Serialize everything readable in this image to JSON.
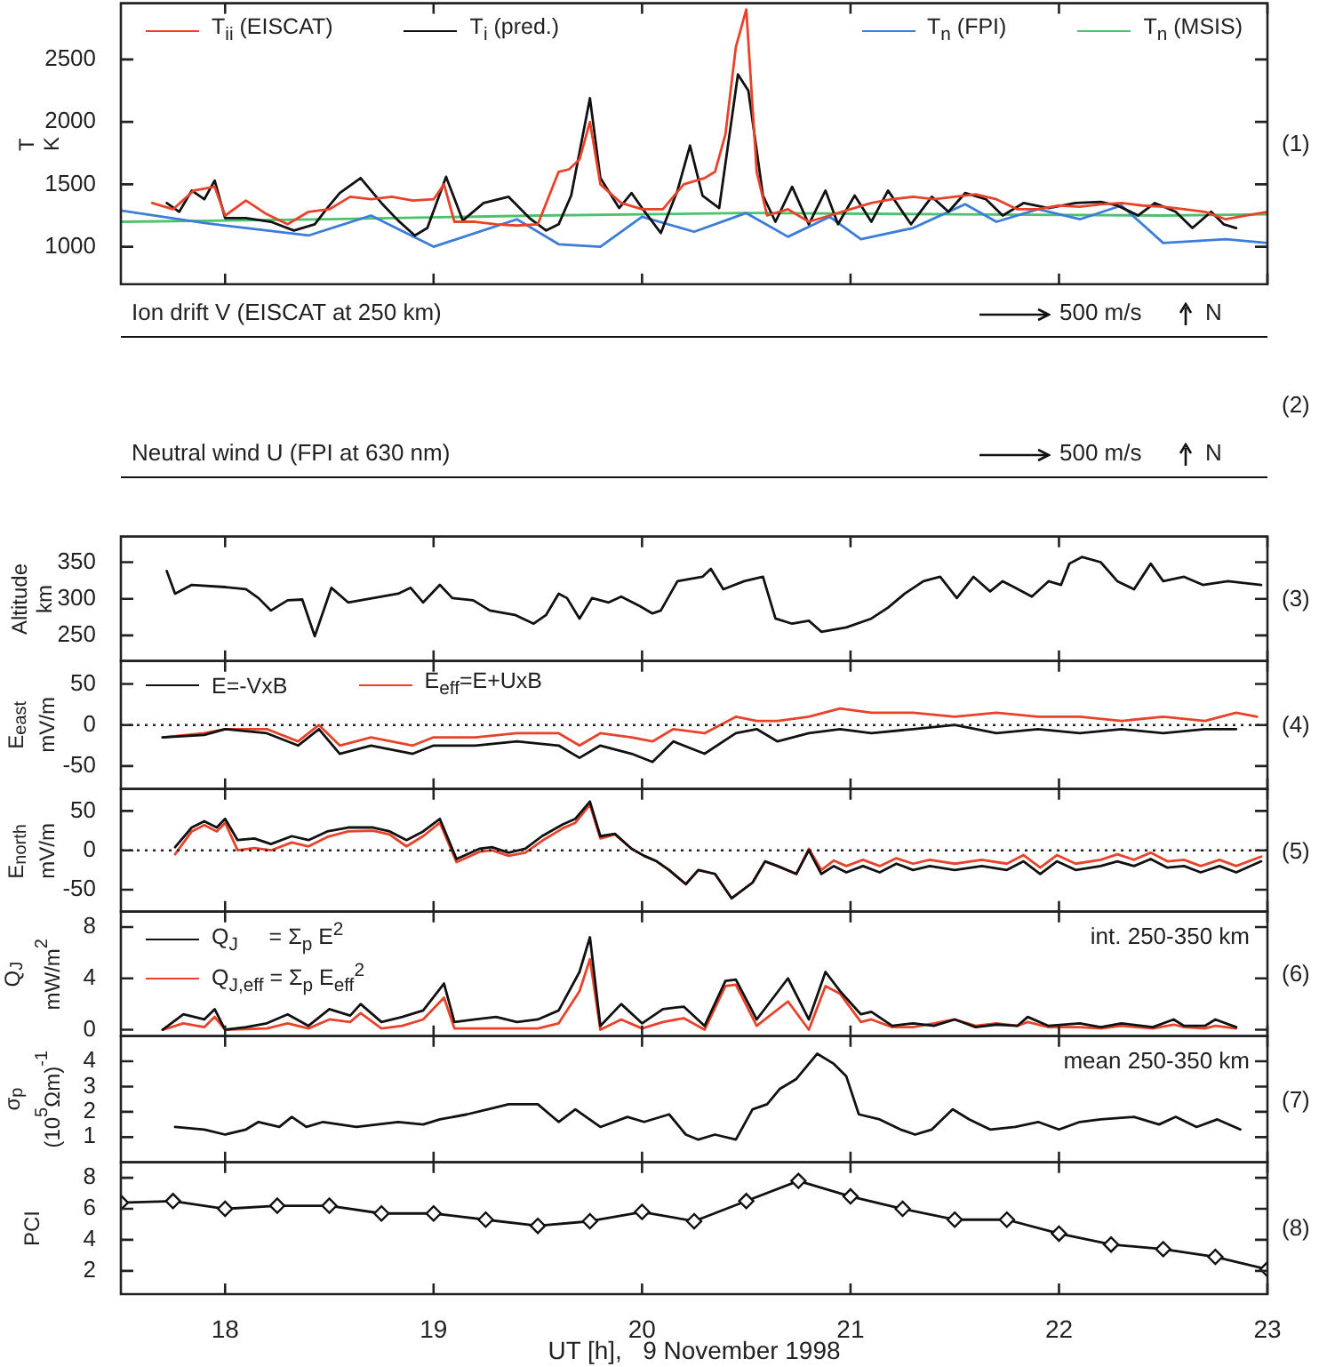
{
  "chart_data": [
    {
      "type": "line",
      "ylabel": "T\nK",
      "xlim": [
        17.5,
        23
      ],
      "xticks": [
        18,
        19,
        20,
        21,
        22,
        23
      ],
      "ylim": [
        700,
        2950
      ],
      "yticks": [
        1000,
        1500,
        2000,
        2500
      ],
      "tick_labels": "y",
      "legend": "top",
      "annotations": [
        "(1)"
      ],
      "series": [
        {
          "name": "T$_{ii}$ (EISCAT)",
          "color": "#e8432a",
          "x": [
            17.65,
            17.75,
            17.85,
            17.95,
            18.0,
            18.1,
            18.2,
            18.3,
            18.4,
            18.5,
            18.6,
            18.7,
            18.8,
            18.9,
            19.0,
            19.05,
            19.1,
            19.2,
            19.3,
            19.4,
            19.5,
            19.6,
            19.65,
            19.7,
            19.75,
            19.8,
            19.9,
            20.0,
            20.1,
            20.2,
            20.3,
            20.35,
            20.4,
            20.45,
            20.5,
            20.55,
            20.6,
            20.7,
            20.8,
            20.9,
            21.0,
            21.1,
            21.2,
            21.3,
            21.4,
            21.5,
            21.6,
            21.7,
            21.8,
            21.9,
            22.0,
            22.1,
            22.2,
            22.3,
            22.4,
            22.5,
            22.6,
            22.7,
            22.8,
            22.9,
            23.0
          ],
          "values": [
            1350,
            1300,
            1450,
            1480,
            1250,
            1370,
            1260,
            1180,
            1280,
            1300,
            1400,
            1380,
            1400,
            1370,
            1380,
            1500,
            1200,
            1200,
            1180,
            1170,
            1180,
            1600,
            1620,
            1700,
            2000,
            1500,
            1350,
            1300,
            1300,
            1500,
            1550,
            1600,
            1900,
            2600,
            2900,
            1600,
            1250,
            1300,
            1200,
            1250,
            1300,
            1350,
            1380,
            1400,
            1380,
            1400,
            1420,
            1380,
            1300,
            1300,
            1330,
            1320,
            1340,
            1350,
            1330,
            1320,
            1300,
            1280,
            1220,
            1250,
            1280
          ]
        },
        {
          "name": "T$_{i}$ (pred.)",
          "color": "#111111",
          "x": [
            17.72,
            17.78,
            17.84,
            17.9,
            17.95,
            18.0,
            18.1,
            18.22,
            18.33,
            18.43,
            18.49,
            18.55,
            18.65,
            18.75,
            18.83,
            18.91,
            18.97,
            19.06,
            19.14,
            19.24,
            19.36,
            19.46,
            19.54,
            19.6,
            19.66,
            19.75,
            19.8,
            19.89,
            19.95,
            20.0,
            20.09,
            20.17,
            20.23,
            20.29,
            20.37,
            20.46,
            20.51,
            20.58,
            20.64,
            20.72,
            20.8,
            20.88,
            20.94,
            21.02,
            21.1,
            21.18,
            21.29,
            21.39,
            21.47,
            21.55,
            21.65,
            21.73,
            21.83,
            21.95,
            22.08,
            22.2,
            22.28,
            22.38,
            22.46,
            22.56,
            22.64,
            22.73,
            22.79,
            22.85
          ],
          "values": [
            1350,
            1280,
            1450,
            1380,
            1530,
            1230,
            1230,
            1200,
            1130,
            1180,
            1310,
            1430,
            1550,
            1350,
            1210,
            1090,
            1150,
            1560,
            1210,
            1350,
            1400,
            1230,
            1130,
            1180,
            1410,
            2190,
            1550,
            1310,
            1430,
            1310,
            1110,
            1450,
            1810,
            1410,
            1310,
            2380,
            2250,
            1410,
            1200,
            1480,
            1180,
            1450,
            1180,
            1410,
            1200,
            1450,
            1180,
            1400,
            1280,
            1430,
            1380,
            1250,
            1350,
            1310,
            1350,
            1360,
            1330,
            1250,
            1350,
            1280,
            1150,
            1280,
            1180,
            1150
          ]
        },
        {
          "name": "T$_{n}$ (FPI)",
          "color": "#3b7dd8",
          "x": [
            17.5,
            17.9,
            18.4,
            18.7,
            19.0,
            19.4,
            19.6,
            19.8,
            20.0,
            20.25,
            20.5,
            20.7,
            20.9,
            21.05,
            21.3,
            21.55,
            21.7,
            21.9,
            22.1,
            22.3,
            22.5,
            22.8,
            23.0
          ],
          "values": [
            1290,
            1190,
            1090,
            1250,
            1000,
            1220,
            1020,
            1000,
            1240,
            1120,
            1270,
            1080,
            1240,
            1060,
            1150,
            1340,
            1200,
            1300,
            1220,
            1330,
            1030,
            1060,
            1030
          ]
        },
        {
          "name": "T$_{n}$ (MSIS)",
          "color": "#4cc36a",
          "x": [
            17.5,
            18.5,
            19.5,
            20.5,
            21.5,
            22.5,
            23.0
          ],
          "values": [
            1200,
            1220,
            1250,
            1270,
            1260,
            1250,
            1260
          ]
        }
      ]
    },
    {
      "type": "other",
      "annotations": [
        "Ion drift V (EISCAT at 250 km)",
        "500 m/s",
        "N",
        "Neutral wind U (FPI at 630 nm)",
        "500 m/s",
        "N",
        "(2)"
      ]
    },
    {
      "type": "line",
      "ylabel": "Altitude\nkm",
      "xlim": [
        17.5,
        23
      ],
      "xticks": [
        18,
        19,
        20,
        21,
        22,
        23
      ],
      "ylim": [
        215,
        385
      ],
      "yticks": [
        250,
        300,
        350
      ],
      "tick_labels": "y",
      "annotations": [
        "(3)"
      ],
      "series": [
        {
          "color": "#111111",
          "x": [
            17.72,
            17.76,
            17.84,
            18.0,
            18.1,
            18.16,
            18.22,
            18.3,
            18.37,
            18.43,
            18.51,
            18.59,
            18.71,
            18.83,
            18.89,
            18.95,
            19.03,
            19.09,
            19.19,
            19.27,
            19.39,
            19.48,
            19.54,
            19.6,
            19.64,
            19.7,
            19.76,
            19.84,
            19.9,
            19.99,
            20.05,
            20.09,
            20.17,
            20.29,
            20.33,
            20.39,
            20.49,
            20.58,
            20.64,
            20.72,
            20.8,
            20.86,
            20.98,
            21.1,
            21.18,
            21.26,
            21.35,
            21.43,
            21.51,
            21.59,
            21.67,
            21.73,
            21.79,
            21.87,
            21.95,
            22.01,
            22.05,
            22.11,
            22.2,
            22.28,
            22.36,
            22.44,
            22.5,
            22.6,
            22.69,
            22.81,
            22.97
          ],
          "values": [
            338,
            307,
            319,
            316,
            313,
            301,
            284,
            298,
            299,
            249,
            315,
            295,
            301,
            307,
            315,
            295,
            319,
            301,
            298,
            284,
            278,
            266,
            278,
            307,
            301,
            273,
            301,
            295,
            303,
            290,
            280,
            284,
            324,
            330,
            341,
            313,
            324,
            330,
            273,
            266,
            270,
            255,
            261,
            273,
            288,
            307,
            324,
            330,
            301,
            330,
            310,
            324,
            315,
            303,
            324,
            319,
            348,
            357,
            350,
            324,
            313,
            348,
            324,
            330,
            319,
            324,
            319
          ]
        }
      ]
    },
    {
      "type": "line",
      "ylabel": "E$_{east}$\nmV/m",
      "xlim": [
        17.5,
        23
      ],
      "xticks": [
        18,
        19,
        20,
        21,
        22,
        23
      ],
      "ylim": [
        -78,
        78
      ],
      "yticks": [
        -50,
        0,
        50
      ],
      "tick_labels": "y",
      "legend": "top left",
      "ref_lines": [
        {
          "axis": "y",
          "value": 0,
          "line_style": "dotted"
        }
      ],
      "annotations": [
        "(4)"
      ],
      "series": [
        {
          "name": "E=-VxB",
          "color": "#111111",
          "x": [
            17.7,
            17.9,
            18.0,
            18.2,
            18.35,
            18.45,
            18.55,
            18.7,
            18.9,
            19.0,
            19.2,
            19.4,
            19.6,
            19.7,
            19.8,
            19.95,
            20.05,
            20.15,
            20.3,
            20.45,
            20.55,
            20.65,
            20.8,
            20.95,
            21.1,
            21.3,
            21.5,
            21.7,
            21.9,
            22.1,
            22.3,
            22.5,
            22.7,
            22.85
          ],
          "values": [
            -15,
            -12,
            -5,
            -10,
            -25,
            -5,
            -35,
            -25,
            -35,
            -25,
            -25,
            -20,
            -25,
            -40,
            -25,
            -35,
            -45,
            -20,
            -35,
            -10,
            -5,
            -20,
            -10,
            -5,
            -10,
            -5,
            0,
            -10,
            -5,
            -10,
            -5,
            -10,
            -5,
            -5
          ]
        },
        {
          "name": "E$_{eff}$=E+UxB",
          "color": "#e8432a",
          "x": [
            17.7,
            17.9,
            18.0,
            18.2,
            18.35,
            18.45,
            18.55,
            18.7,
            18.9,
            19.0,
            19.2,
            19.4,
            19.6,
            19.7,
            19.8,
            19.95,
            20.05,
            20.15,
            20.3,
            20.45,
            20.55,
            20.65,
            20.8,
            20.95,
            21.1,
            21.3,
            21.5,
            21.7,
            21.9,
            22.1,
            22.3,
            22.5,
            22.7,
            22.85,
            22.95
          ],
          "values": [
            -15,
            -10,
            -5,
            -5,
            -20,
            0,
            -25,
            -15,
            -25,
            -15,
            -15,
            -10,
            -10,
            -25,
            -10,
            -15,
            -20,
            -5,
            -10,
            10,
            5,
            5,
            10,
            20,
            15,
            15,
            10,
            15,
            10,
            10,
            5,
            10,
            5,
            15,
            10
          ]
        }
      ]
    },
    {
      "type": "line",
      "ylabel": "E$_{north}$\nmV/m",
      "xlim": [
        17.5,
        23
      ],
      "xticks": [
        18,
        19,
        20,
        21,
        22,
        23
      ],
      "ylim": [
        -78,
        78
      ],
      "yticks": [
        -50,
        0,
        50
      ],
      "tick_labels": "y",
      "ref_lines": [
        {
          "axis": "y",
          "value": 0,
          "line_style": "dotted"
        }
      ],
      "annotations": [
        "(5)"
      ],
      "series": [
        {
          "color": "#111111",
          "x": [
            17.76,
            17.84,
            17.9,
            17.96,
            18.0,
            18.06,
            18.14,
            18.22,
            18.32,
            18.4,
            18.49,
            18.59,
            18.71,
            18.79,
            18.87,
            18.95,
            19.03,
            19.11,
            19.22,
            19.28,
            19.36,
            19.44,
            19.52,
            19.62,
            19.68,
            19.75,
            19.8,
            19.87,
            19.95,
            20.01,
            20.07,
            20.13,
            20.21,
            20.27,
            20.35,
            20.43,
            20.53,
            20.59,
            20.65,
            20.74,
            20.8,
            20.86,
            20.92,
            20.98,
            21.06,
            21.14,
            21.22,
            21.3,
            21.38,
            21.5,
            21.63,
            21.75,
            21.83,
            21.91,
            21.99,
            22.08,
            22.2,
            22.28,
            22.36,
            22.44,
            22.52,
            22.6,
            22.68,
            22.77,
            22.85,
            22.97
          ],
          "values": [
            4,
            29,
            37,
            29,
            40,
            13,
            15,
            8,
            18,
            13,
            24,
            29,
            29,
            24,
            13,
            24,
            40,
            -11,
            2,
            4,
            -3,
            2,
            18,
            33,
            40,
            62,
            18,
            21,
            2,
            -7,
            -14,
            -25,
            -43,
            -25,
            -30,
            -61,
            -41,
            -14,
            -20,
            -30,
            0,
            -30,
            -20,
            -28,
            -20,
            -28,
            -17,
            -25,
            -20,
            -25,
            -20,
            -25,
            -14,
            -30,
            -14,
            -25,
            -20,
            -14,
            -20,
            -11,
            -22,
            -20,
            -28,
            -20,
            -28,
            -14
          ]
        },
        {
          "color": "#e8432a",
          "x": [
            17.76,
            17.84,
            17.9,
            17.96,
            18.0,
            18.06,
            18.14,
            18.22,
            18.32,
            18.4,
            18.49,
            18.59,
            18.71,
            18.79,
            18.87,
            18.95,
            19.03,
            19.11,
            19.22,
            19.28,
            19.36,
            19.44,
            19.52,
            19.62,
            19.68,
            19.75,
            19.8,
            19.87,
            19.95,
            20.01,
            20.07,
            20.13,
            20.21,
            20.27,
            20.35,
            20.43,
            20.53,
            20.59,
            20.65,
            20.74,
            20.8,
            20.86,
            20.92,
            20.98,
            21.06,
            21.14,
            21.22,
            21.3,
            21.38,
            21.5,
            21.63,
            21.75,
            21.83,
            21.91,
            21.99,
            22.08,
            22.2,
            22.28,
            22.36,
            22.44,
            22.52,
            22.6,
            22.68,
            22.77,
            22.85,
            22.97
          ],
          "values": [
            -5,
            24,
            32,
            24,
            35,
            0,
            3,
            0,
            10,
            5,
            17,
            24,
            25,
            20,
            5,
            18,
            35,
            -15,
            -2,
            0,
            -7,
            -3,
            12,
            28,
            35,
            58,
            15,
            20,
            2,
            -7,
            -14,
            -25,
            -43,
            -25,
            -30,
            -61,
            -41,
            -14,
            -20,
            -30,
            2,
            -25,
            -13,
            -20,
            -12,
            -20,
            -10,
            -17,
            -12,
            -17,
            -12,
            -17,
            -6,
            -22,
            -6,
            -17,
            -12,
            -5,
            -12,
            -3,
            -14,
            -12,
            -20,
            -12,
            -20,
            -8
          ]
        }
      ]
    },
    {
      "type": "line",
      "ylabel": "Q$_{J}$\nmW/m$^{2}$",
      "xlim": [
        17.5,
        23
      ],
      "xticks": [
        18,
        19,
        20,
        21,
        22,
        23
      ],
      "ylim": [
        -0.5,
        9.2
      ],
      "yticks": [
        0,
        4,
        8
      ],
      "tick_labels": "y",
      "legend": "top left",
      "annotations": [
        "int. 250-350 km",
        "(6)"
      ],
      "series": [
        {
          "name": "Q$_{J}$     = Σ$_{p}$ E$^{2}$",
          "color": "#111111",
          "x": [
            17.7,
            17.8,
            17.9,
            17.95,
            18.0,
            18.1,
            18.2,
            18.3,
            18.4,
            18.5,
            18.6,
            18.65,
            18.75,
            18.85,
            18.95,
            19.05,
            19.1,
            19.2,
            19.3,
            19.4,
            19.5,
            19.6,
            19.7,
            19.75,
            19.8,
            19.9,
            20.0,
            20.1,
            20.2,
            20.3,
            20.4,
            20.45,
            20.55,
            20.7,
            20.8,
            20.88,
            20.95,
            21.05,
            21.1,
            21.2,
            21.3,
            21.4,
            21.5,
            21.6,
            21.7,
            21.8,
            21.85,
            21.95,
            22.1,
            22.2,
            22.3,
            22.45,
            22.55,
            22.6,
            22.7,
            22.75,
            22.85
          ],
          "values": [
            0,
            1.2,
            0.8,
            1.6,
            0,
            0.2,
            0.5,
            1.2,
            0.3,
            1.6,
            1.1,
            2.0,
            0.6,
            1.0,
            1.5,
            3.6,
            0.6,
            0.8,
            1.0,
            0.6,
            0.8,
            1.5,
            4.5,
            7.2,
            0.3,
            2.0,
            0.5,
            1.6,
            1.8,
            0.3,
            3.8,
            3.9,
            0.8,
            4.0,
            0.8,
            4.5,
            3.0,
            1.2,
            1.4,
            0.3,
            0.5,
            0.3,
            0.8,
            0.2,
            0.4,
            0.3,
            1.0,
            0.3,
            0.5,
            0.2,
            0.5,
            0.2,
            0.8,
            0.3,
            0.3,
            0.8,
            0.2
          ]
        },
        {
          "name": "Q$_{J,eff}$ = Σ$_{p}$ E$_{eff}$$^{2}$",
          "color": "#e8432a",
          "x": [
            17.7,
            17.8,
            17.9,
            17.95,
            18.0,
            18.2,
            18.3,
            18.4,
            18.5,
            18.6,
            18.65,
            18.75,
            18.85,
            18.95,
            19.05,
            19.1,
            19.3,
            19.5,
            19.6,
            19.7,
            19.75,
            19.8,
            19.9,
            20.0,
            20.1,
            20.2,
            20.3,
            20.4,
            20.45,
            20.55,
            20.7,
            20.8,
            20.88,
            20.95,
            21.05,
            21.1,
            21.2,
            21.3,
            21.4,
            21.5,
            21.6,
            21.7,
            21.8,
            21.85,
            21.95,
            22.1,
            22.2,
            22.3,
            22.45,
            22.55,
            22.6,
            22.7,
            22.75,
            22.85
          ],
          "values": [
            0,
            0.5,
            0.2,
            1.0,
            0,
            0.1,
            0.5,
            0.1,
            0.8,
            0.6,
            1.3,
            0.1,
            0.3,
            0.8,
            2.5,
            0.1,
            0.1,
            0.1,
            0.5,
            3.0,
            5.5,
            0,
            0.8,
            0.1,
            0.6,
            0.9,
            0,
            3.4,
            3.5,
            0.3,
            2.2,
            0,
            3.4,
            2.8,
            0.6,
            0.8,
            0.2,
            0.2,
            0.5,
            0.8,
            0.3,
            0.5,
            0.3,
            0.6,
            0.2,
            0.2,
            0.1,
            0.3,
            0.1,
            0.4,
            0.2,
            0.1,
            0.3,
            0.1
          ]
        }
      ]
    },
    {
      "type": "line",
      "ylabel": "σ$_{p}$\n(10$^{5}$Ωm)$^{-1}$",
      "xlim": [
        17.5,
        23
      ],
      "xticks": [
        18,
        19,
        20,
        21,
        22,
        23
      ],
      "ylim": [
        0,
        5
      ],
      "yticks": [
        1,
        2,
        3,
        4
      ],
      "tick_labels": "y",
      "annotations": [
        "mean 250-350 km",
        "(7)"
      ],
      "series": [
        {
          "color": "#111111",
          "x": [
            17.76,
            17.9,
            18.0,
            18.1,
            18.16,
            18.26,
            18.32,
            18.39,
            18.47,
            18.63,
            18.83,
            18.95,
            19.03,
            19.16,
            19.26,
            19.36,
            19.5,
            19.6,
            19.68,
            19.8,
            19.93,
            20.01,
            20.13,
            20.21,
            20.27,
            20.35,
            20.45,
            20.53,
            20.6,
            20.66,
            20.74,
            20.84,
            20.92,
            20.98,
            21.04,
            21.14,
            21.24,
            21.31,
            21.39,
            21.49,
            21.57,
            21.67,
            21.79,
            21.9,
            22.0,
            22.1,
            22.2,
            22.36,
            22.48,
            22.56,
            22.66,
            22.76,
            22.87
          ],
          "values": [
            1.4,
            1.3,
            1.1,
            1.3,
            1.6,
            1.4,
            1.8,
            1.4,
            1.6,
            1.4,
            1.6,
            1.5,
            1.7,
            1.9,
            2.1,
            2.3,
            2.3,
            1.6,
            2.1,
            1.4,
            1.8,
            1.6,
            1.9,
            1.1,
            0.9,
            1.1,
            0.9,
            2.1,
            2.3,
            2.9,
            3.3,
            4.3,
            3.9,
            3.4,
            1.9,
            1.7,
            1.3,
            1.1,
            1.3,
            2.1,
            1.7,
            1.3,
            1.4,
            1.6,
            1.3,
            1.6,
            1.7,
            1.8,
            1.5,
            1.8,
            1.4,
            1.7,
            1.3
          ]
        }
      ]
    },
    {
      "type": "line",
      "ylabel": "PCI",
      "xlabel": "UT [h],   9 November 1998",
      "xlim": [
        17.5,
        23
      ],
      "xticks": [
        18,
        19,
        20,
        21,
        22,
        23
      ],
      "ylim": [
        0.5,
        9
      ],
      "yticks": [
        2,
        4,
        6,
        8
      ],
      "marker": "diamond",
      "annotations": [
        "(8)"
      ],
      "series": [
        {
          "color": "#111111",
          "x": [
            17.5,
            17.75,
            18.0,
            18.25,
            18.5,
            18.75,
            19.0,
            19.25,
            19.5,
            19.75,
            20.0,
            20.25,
            20.5,
            20.75,
            21.0,
            21.25,
            21.5,
            21.75,
            22.0,
            22.25,
            22.5,
            22.75,
            23.0
          ],
          "values": [
            6.4,
            6.5,
            6.0,
            6.2,
            6.2,
            5.7,
            5.7,
            5.3,
            4.9,
            5.2,
            5.8,
            5.2,
            6.5,
            7.8,
            6.8,
            6.0,
            5.3,
            5.3,
            4.4,
            3.7,
            3.4,
            2.9,
            2.1
          ]
        }
      ]
    }
  ]
}
